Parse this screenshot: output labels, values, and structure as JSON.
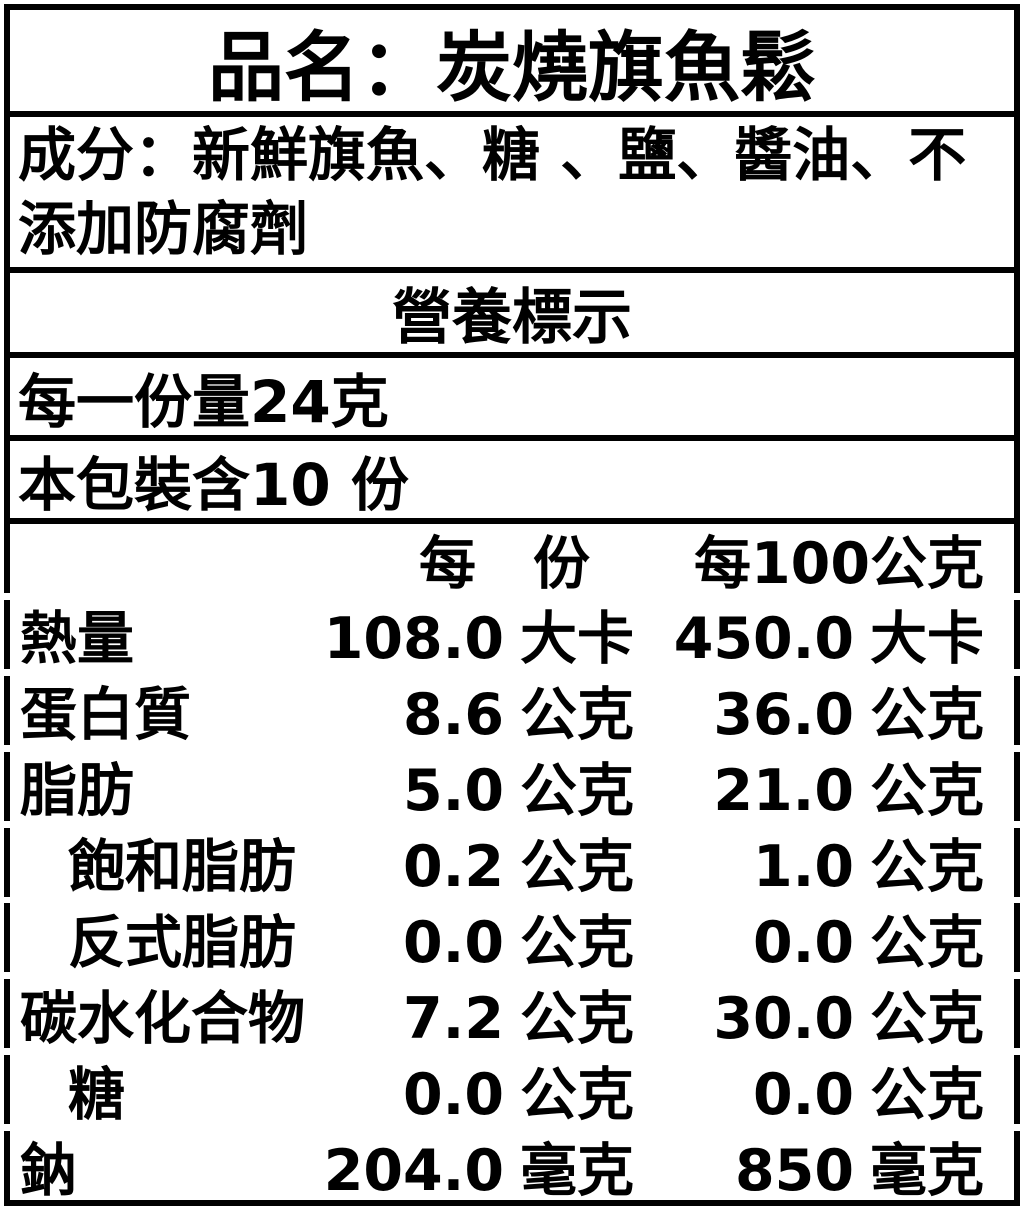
{
  "colors": {
    "text": "#000000",
    "background": "#ffffff",
    "border": "#000000"
  },
  "title": "品名：炭燒旗魚鬆",
  "ingredients": "成分：新鮮旗魚、糖 、鹽、醬油、不添加防腐劑",
  "nutrition_heading": "營養標示",
  "serving_size": "每一份量24克",
  "servings_per_package": "本包裝含10 份",
  "table": {
    "headers": {
      "label": "",
      "per_serving": "每　份",
      "per_100g": "每100公克"
    },
    "rows": [
      {
        "label": "熱量",
        "per_serving_value": "108.0",
        "per_serving_unit": "大卡",
        "per_100g_value": "450.0",
        "per_100g_unit": "大卡"
      },
      {
        "label": "蛋白質",
        "per_serving_value": "8.6",
        "per_serving_unit": "公克",
        "per_100g_value": "36.0",
        "per_100g_unit": "公克"
      },
      {
        "label": "脂肪",
        "per_serving_value": "5.0",
        "per_serving_unit": "公克",
        "per_100g_value": "21.0",
        "per_100g_unit": "公克"
      },
      {
        "label": "飽和脂肪",
        "per_serving_value": "0.2",
        "per_serving_unit": "公克",
        "per_100g_value": "1.0",
        "per_100g_unit": "公克"
      },
      {
        "label": "反式脂肪",
        "per_serving_value": "0.0",
        "per_serving_unit": "公克",
        "per_100g_value": "0.0",
        "per_100g_unit": "公克"
      },
      {
        "label": "碳水化合物",
        "per_serving_value": "7.2",
        "per_serving_unit": "公克",
        "per_100g_value": "30.0",
        "per_100g_unit": "公克"
      },
      {
        "label": "糖",
        "per_serving_value": "0.0",
        "per_serving_unit": "公克",
        "per_100g_value": "0.0",
        "per_100g_unit": "公克"
      },
      {
        "label": "鈉",
        "per_serving_value": "204.0",
        "per_serving_unit": "毫克",
        "per_100g_value": "850",
        "per_100g_unit": "毫克"
      }
    ]
  }
}
